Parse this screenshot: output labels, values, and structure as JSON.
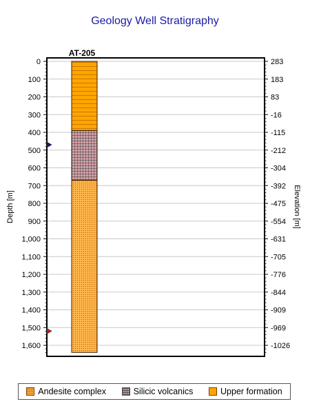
{
  "chart_data": {
    "type": "well-stratigraphy",
    "title": "Geology Well Stratigraphy",
    "well_name": "AT-205",
    "ylabel_left": "Depth [m]",
    "ylabel_right": "Elevation [m]",
    "depth_range": [
      0,
      1650
    ],
    "depth_ticks": [
      "0",
      "100",
      "200",
      "300",
      "400",
      "500",
      "600",
      "700",
      "800",
      "900",
      "1,000",
      "1,100",
      "1,200",
      "1,300",
      "1,400",
      "1,500",
      "1,600"
    ],
    "depth_tick_values": [
      0,
      100,
      200,
      300,
      400,
      500,
      600,
      700,
      800,
      900,
      1000,
      1100,
      1200,
      1300,
      1400,
      1500,
      1600
    ],
    "elevation_labels": [
      "283",
      "183",
      "83",
      "-16",
      "-115",
      "-212",
      "-304",
      "-392",
      "-475",
      "-554",
      "-631",
      "-705",
      "-776",
      "-844",
      "-909",
      "-969",
      "-1026"
    ],
    "layers": [
      {
        "name": "Upper formation",
        "top": 0,
        "bottom": 390,
        "pattern": "hlines",
        "color": "#ffa500"
      },
      {
        "name": "Silicic volcanics",
        "top": 390,
        "bottom": 670,
        "pattern": "grid",
        "color": "#d8a0a8"
      },
      {
        "name": "Andesite complex",
        "top": 670,
        "bottom": 1640,
        "pattern": "dots",
        "color": "#ffb84d"
      }
    ],
    "markers": [
      {
        "depth": 470,
        "color": "#1a1a6e"
      },
      {
        "depth": 1520,
        "color": "#cc1f1f"
      }
    ],
    "grid": true,
    "legend_position": "bottom"
  },
  "legend": [
    {
      "label": "Andesite complex",
      "cls": "sw-andesite"
    },
    {
      "label": "Silicic volcanics",
      "cls": "sw-silicic"
    },
    {
      "label": "Upper formation",
      "cls": "sw-upper"
    }
  ]
}
